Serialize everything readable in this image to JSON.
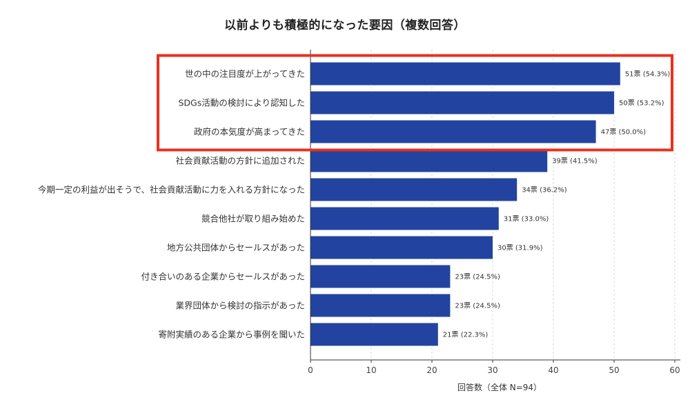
{
  "chart_data": {
    "type": "bar",
    "orientation": "horizontal",
    "title": "以前よりも積極的になった要因（複数回答）",
    "xlabel": "回答数（全体 N=94）",
    "ylabel": "",
    "xlim": [
      0,
      60
    ],
    "xticks": [
      0,
      10,
      20,
      30,
      40,
      50,
      60
    ],
    "grid": "vertical-dashed",
    "bar_color": "#2244a0",
    "highlight_color": "#e8301e",
    "highlighted_categories": [
      0,
      1,
      2
    ],
    "categories": [
      "世の中の注目度が上がってきた",
      "SDGs活動の検討により認知した",
      "政府の本気度が高まってきた",
      "社会貢献活動の方針に追加された",
      "今期一定の利益が出そうで、社会貢献活動に力を入れる方針になった",
      "競合他社が取り組み始めた",
      "地方公共団体からセールスがあった",
      "付き合いのある企業からセールスがあった",
      "業界団体から検討の指示があった",
      "寄附実績のある企業から事例を聞いた"
    ],
    "values": [
      51,
      50,
      47,
      39,
      34,
      31,
      30,
      23,
      23,
      21
    ],
    "value_labels": [
      "51票 (54.3%)",
      "50票 (53.2%)",
      "47票 (50.0%)",
      "39票 (41.5%)",
      "34票 (36.2%)",
      "31票 (33.0%)",
      "30票 (31.9%)",
      "23票 (24.5%)",
      "23票 (24.5%)",
      "21票 (22.3%)"
    ]
  }
}
